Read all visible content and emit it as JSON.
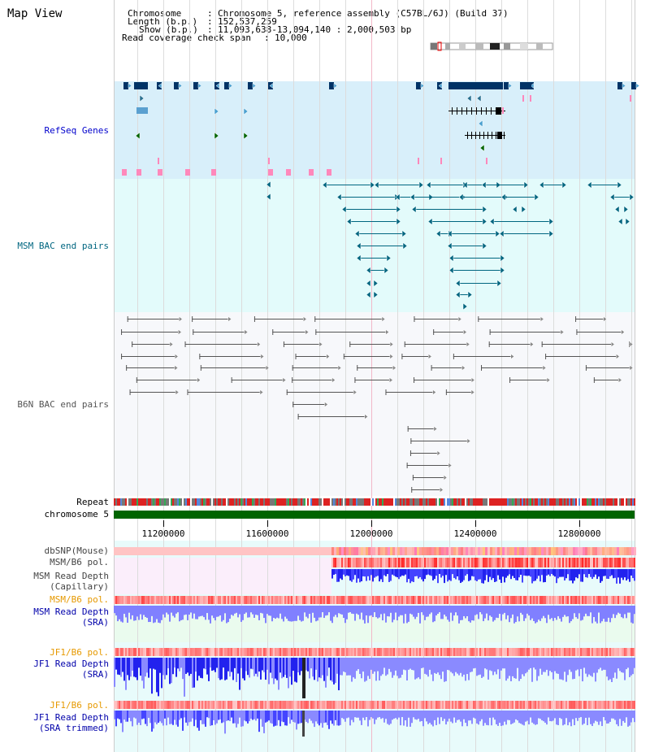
{
  "title": "Map View",
  "header": {
    "chromosome_label": "Chromosome",
    "chromosome_value": "Chromosome 5, reference assembly (C57BL/6J) (Build 37)",
    "length_label": "Length (b.p.)",
    "length_value": "152,537,259",
    "show_label": "Show (b.p.)",
    "show_value": "11,093,638-13,094,140 : 2,000,503 bp",
    "coverage_label": "Read coverage check span",
    "coverage_value": "10,000"
  },
  "tracks": {
    "refseq": "RefSeq Genes",
    "msm_bac": "MSM BAC end pairs",
    "b6n_bac": "B6N BAC end pairs",
    "repeat": "Repeat",
    "chromosome": "chromosome 5",
    "dbsnp": "dbSNP(Mouse)",
    "msm_pol1": "MSM/B6 pol.",
    "msm_depth_cap_1": "MSM Read Depth",
    "msm_depth_cap_2": "(Capillary)",
    "msm_pol2": "MSM/B6 pol.",
    "msm_depth_sra_1": "MSM Read Depth",
    "msm_depth_sra_2": "(SRA)",
    "jf1_pol1": "JF1/B6 pol.",
    "jf1_depth_sra_1": "JF1 Read Depth",
    "jf1_depth_sra_2": "(SRA)",
    "jf1_pol2": "JF1/B6 pol.",
    "jf1_depth_trim_1": "JF1 Read Depth",
    "jf1_depth_trim_2": "(SRA trimmed)"
  },
  "axis": {
    "ticks": [
      "11200000",
      "11600000",
      "12000000",
      "12400000",
      "12800000"
    ]
  },
  "colors": {
    "refseq_bg": "#d8effa",
    "msm_bg": "#e3fbfb",
    "b6n_bg": "#f7f8fb",
    "gene": "#003366",
    "msm": "#006680",
    "b6n": "#555555",
    "depth_dark": "#1a1aff",
    "depth_light": "#8080ff",
    "pol": "#ff3333",
    "green": "#006400"
  }
}
